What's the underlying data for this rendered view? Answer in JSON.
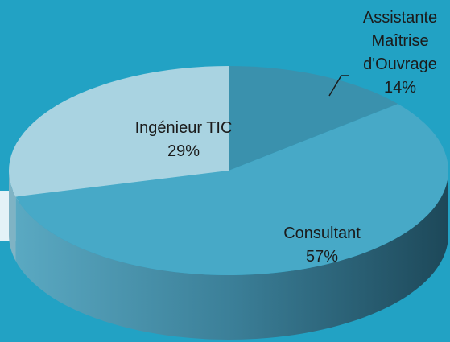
{
  "chart_data": {
    "type": "pie3d",
    "categories": [
      "Assistante Maîtrise d'Ouvrage",
      "Consultant",
      "Ingénieur TIC"
    ],
    "values": [
      14,
      57,
      29
    ],
    "value_labels": [
      "14%",
      "57%",
      "29%"
    ],
    "colors": [
      "#3a91ad",
      "#47a9c7",
      "#a9d3e1"
    ]
  }
}
